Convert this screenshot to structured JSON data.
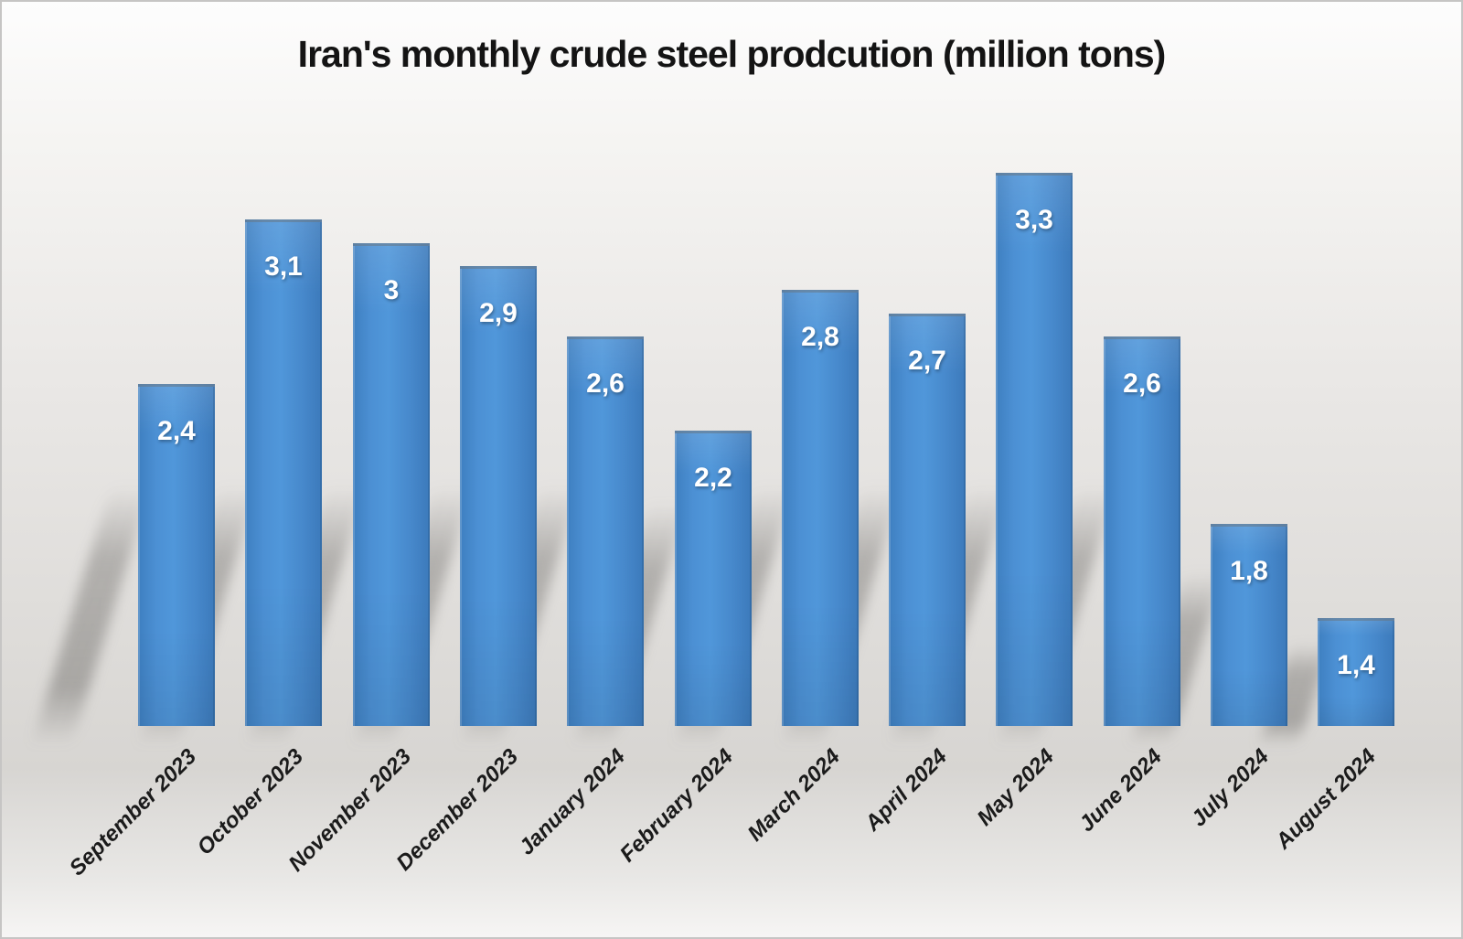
{
  "chart_data": {
    "type": "bar",
    "title": "Iran's monthly crude steel prodcution (million tons)",
    "categories": [
      "September 2023",
      "October 2023",
      "November 2023",
      "December 2023",
      "January 2024",
      "February 2024",
      "March 2024",
      "April 2024",
      "May 2024",
      "June 2024",
      "July 2024",
      "August 2024"
    ],
    "values": [
      2.4,
      3.1,
      3.0,
      2.9,
      2.6,
      2.2,
      2.8,
      2.7,
      3.3,
      2.6,
      1.8,
      1.4
    ],
    "value_labels": [
      "2,4",
      "3,1",
      "3",
      "2,9",
      "2,6",
      "2,2",
      "2,8",
      "2,7",
      "3,3",
      "2,6",
      "1,8",
      "1,4"
    ],
    "xlabel": "",
    "ylabel": "",
    "legend": "none",
    "grid": false,
    "value_axis_visible": false,
    "baseline_value": 0.94,
    "ylim": [
      0.94,
      3.46
    ],
    "colors": {
      "bar_main": "#4789cc",
      "bar_light": "#5097da",
      "bar_dark": "#3c7abb",
      "bar_top_edge": "#7c8894",
      "value_label_text": "#ffffff",
      "title_text": "#141414",
      "axis_label_text": "#1b1b1b",
      "background_top": "#fdfdfd",
      "background_mid": "#dcdad7",
      "shadow": "#6c6a67"
    }
  }
}
